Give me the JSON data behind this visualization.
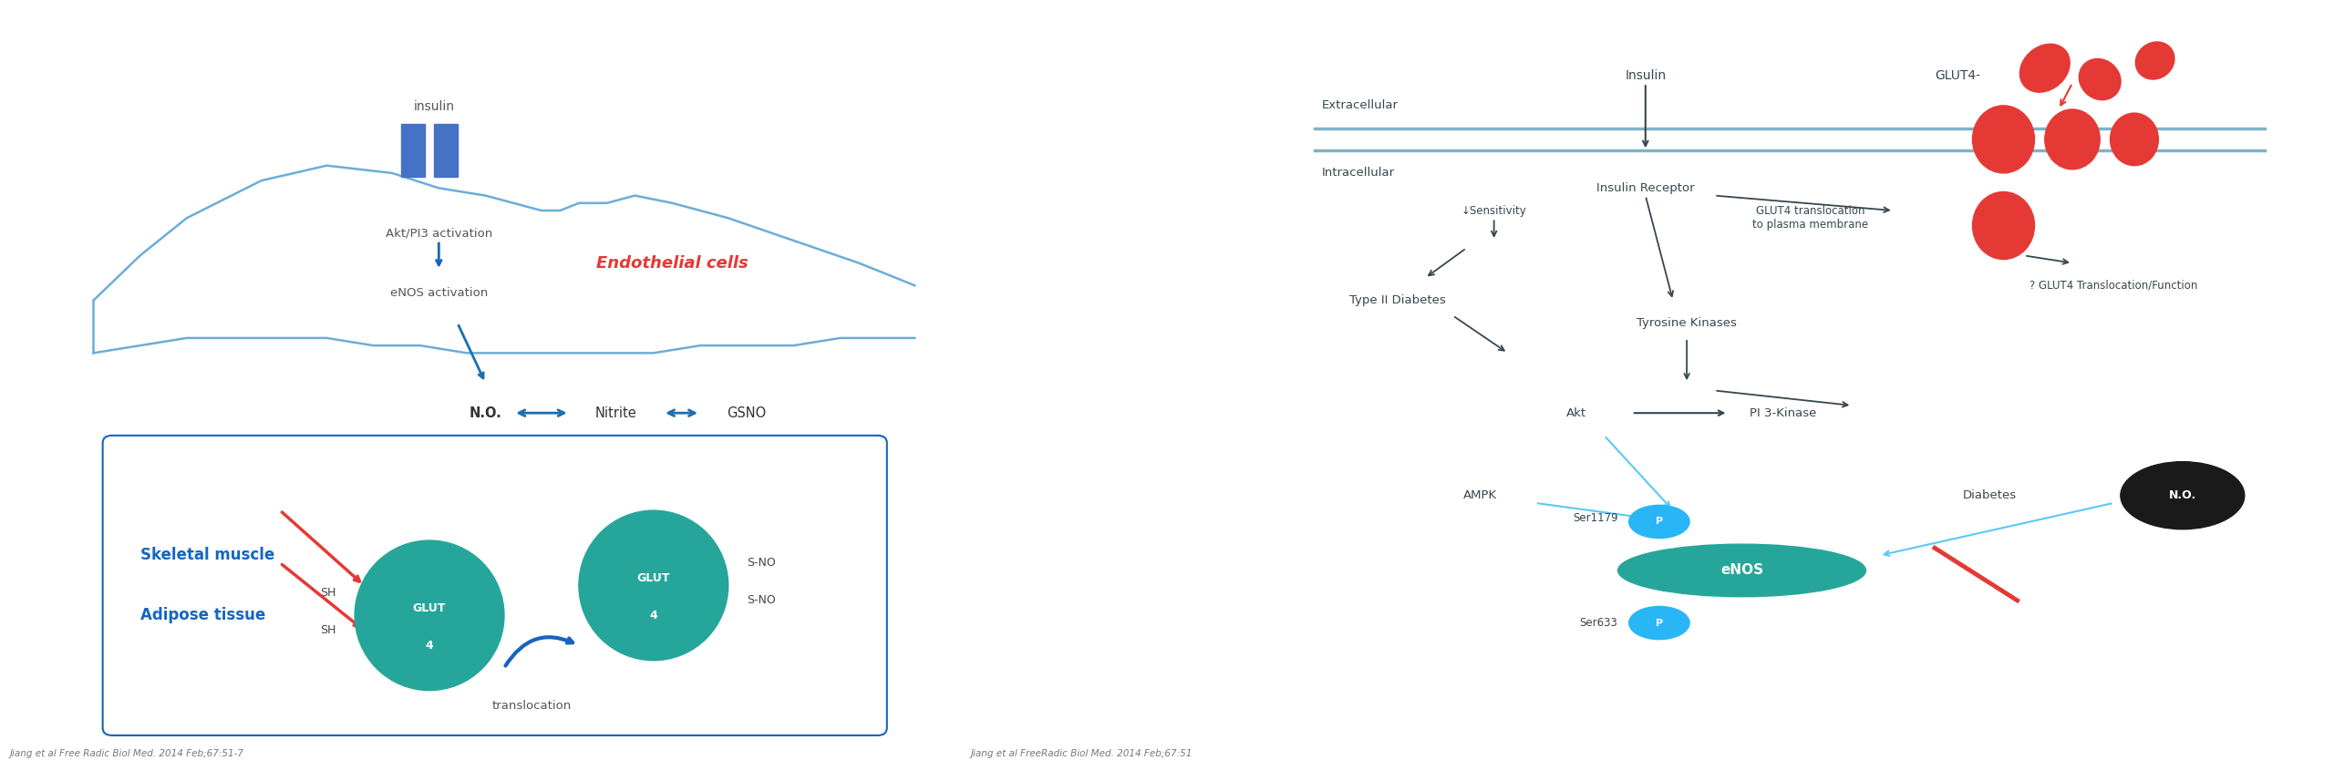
{
  "bg_color": "#ffffff",
  "left_panel": {
    "cell_color": "#6baed6",
    "insulin_rect_color": "#4472c4",
    "insulin_label": "insulin",
    "akt_label": "Akt/PI3 activation",
    "enos_label": "eNOS activation",
    "no_label": "N.O.",
    "nitrite_label": "Nitrite",
    "gsno_label": "GSNO",
    "endothelial_label": "Endothelial cells",
    "endothelial_color": "#e53935",
    "skeletal_label": "Skeletal muscle",
    "adipose_label": "Adipose tissue",
    "skeletal_color": "#1565c0",
    "glut4_color": "#26a69a",
    "glut4_label": "GLUT\n4",
    "translocation_label": "translocation",
    "sh_label": "SH",
    "sh_label2": "SH",
    "sno_label": "S-NO",
    "sno_label2": "S-NO",
    "ref_label": "Jiang et al Free Radic Biol Med. 2014 Feb;67:51-7",
    "dark_blue": "#1565c0",
    "arrow_blue": "#1a6faf",
    "red_color": "#e53935"
  },
  "right_panel": {
    "extracellular_label": "Extracellular",
    "intracellular_label": "Intracellular",
    "insulin_label": "Insulin",
    "glut4_label": "GLUT4-",
    "insulin_receptor_label": "Insulin Receptor",
    "glut4_translocation_label": "GLUT4 translocation\nto plasma membrane",
    "sensitivity_label": "↓Sensitivity",
    "type2_label": "Type II Diabetes",
    "tyrosine_label": "Tyrosine Kinases",
    "akt_label": "Akt",
    "pi3k_label": "PI 3-Kinase",
    "ampk_label": "AMPK",
    "diabetes_label": "Diabetes",
    "no_label": "N.O.",
    "enos_label": "eNOS",
    "ser1179_label": "Ser1179",
    "ser633_label": "Ser633",
    "p_label": "P",
    "glut4_function_label": "? GLUT4 Translocation/Function",
    "ref_label": "Jiang et al FreeRadic Biol Med. 2014 Feb;67:51",
    "dark_color": "#37474f",
    "light_blue": "#5bc8f5",
    "red_color": "#e53935",
    "teal_color": "#26a69a",
    "blue_p_color": "#29b6f6",
    "black_color": "#1a1a1a",
    "membrane_color": "#7fb3c8"
  }
}
